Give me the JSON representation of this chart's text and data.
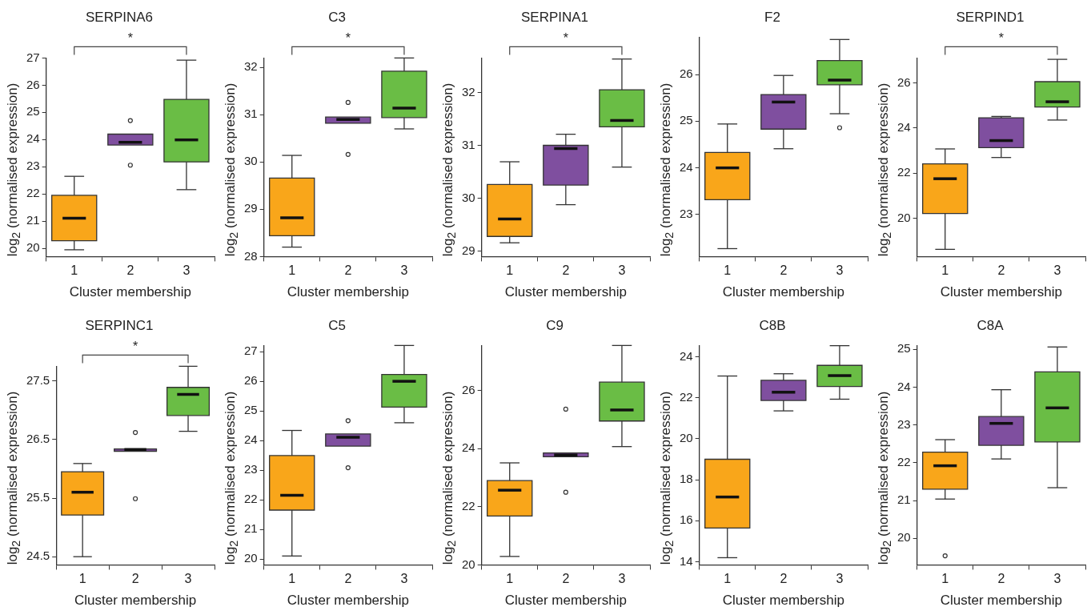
{
  "chart_data": [
    {
      "type": "box",
      "title": "SERPINA6",
      "xlabel": "Cluster membership",
      "ylabel": "log$_{2}$ (normalised expression)",
      "categories": [
        "1",
        "2",
        "3"
      ],
      "colors": [
        "#f9a61a",
        "#7f4f9f",
        "#6abd45"
      ],
      "ylim": [
        19.7,
        27
      ],
      "yticks": [
        20,
        21,
        22,
        23,
        24,
        25,
        26,
        27
      ],
      "annotations": [
        "*"
      ],
      "boxes": [
        {
          "low": 19.95,
          "q1": 20.28,
          "median": 21.11,
          "q3": 21.95,
          "high": 22.65
        },
        {
          "low": 23.8,
          "q1": 23.8,
          "median": 23.9,
          "q3": 24.2,
          "high": 24.2,
          "outliers": [
            24.7,
            23.06
          ]
        },
        {
          "low": 22.16,
          "q1": 23.18,
          "median": 23.99,
          "q3": 25.48,
          "high": 26.92
        }
      ]
    },
    {
      "type": "box",
      "title": "C3",
      "xlabel": "Cluster membership",
      "ylabel": "log$_{2}$ (normalised expression)",
      "categories": [
        "1",
        "2",
        "3"
      ],
      "colors": [
        "#f9a61a",
        "#7f4f9f",
        "#6abd45"
      ],
      "ylim": [
        28,
        32.2
      ],
      "yticks": [
        28,
        29,
        30,
        31,
        32
      ],
      "annotations": [
        "*"
      ],
      "boxes": [
        {
          "low": 28.2,
          "q1": 28.44,
          "median": 28.82,
          "q3": 29.66,
          "high": 30.14
        },
        {
          "low": 30.82,
          "q1": 30.82,
          "median": 30.9,
          "q3": 30.95,
          "high": 30.95,
          "outliers": [
            31.26,
            30.16
          ]
        },
        {
          "low": 30.7,
          "q1": 30.94,
          "median": 31.14,
          "q3": 31.92,
          "high": 32.2
        }
      ]
    },
    {
      "type": "box",
      "title": "SERPINA1",
      "xlabel": "Cluster membership",
      "ylabel": "log$_{2}$ (normalised expression)",
      "categories": [
        "1",
        "2",
        "3"
      ],
      "colors": [
        "#f9a61a",
        "#7f4f9f",
        "#6abd45"
      ],
      "ylim": [
        28.9,
        32.65
      ],
      "yticks": [
        29,
        30,
        31,
        32
      ],
      "annotations": [
        "*"
      ],
      "boxes": [
        {
          "low": 29.16,
          "q1": 29.28,
          "median": 29.61,
          "q3": 30.26,
          "high": 30.69
        },
        {
          "low": 29.88,
          "q1": 30.25,
          "median": 30.94,
          "q3": 31.0,
          "high": 31.21
        },
        {
          "low": 30.59,
          "q1": 31.35,
          "median": 31.47,
          "q3": 32.05,
          "high": 32.63
        }
      ]
    },
    {
      "type": "box",
      "title": "F2",
      "xlabel": "Cluster membership",
      "ylabel": "log$_{2}$ (normalised expression)",
      "categories": [
        "1",
        "2",
        "3"
      ],
      "colors": [
        "#f9a61a",
        "#7f4f9f",
        "#6abd45"
      ],
      "ylim": [
        22.1,
        26.8
      ],
      "yticks": [
        23,
        24,
        25,
        26
      ],
      "boxes": [
        {
          "low": 22.27,
          "q1": 23.32,
          "median": 24.0,
          "q3": 24.33,
          "high": 24.94
        },
        {
          "low": 24.41,
          "q1": 24.83,
          "median": 25.41,
          "q3": 25.57,
          "high": 25.98
        },
        {
          "low": 25.16,
          "q1": 25.78,
          "median": 25.88,
          "q3": 26.3,
          "high": 26.75,
          "outliers": [
            24.86
          ]
        }
      ]
    },
    {
      "type": "box",
      "title": "SERPIND1",
      "xlabel": "Cluster membership",
      "ylabel": "log$_{2}$ (normalised expression)",
      "categories": [
        "1",
        "2",
        "3"
      ],
      "colors": [
        "#f9a61a",
        "#7f4f9f",
        "#6abd45"
      ],
      "ylim": [
        18.3,
        27.1
      ],
      "yticks": [
        20,
        22,
        24,
        26
      ],
      "annotations": [
        "*"
      ],
      "boxes": [
        {
          "low": 18.62,
          "q1": 20.21,
          "median": 21.75,
          "q3": 22.41,
          "high": 23.07
        },
        {
          "low": 22.69,
          "q1": 23.13,
          "median": 23.44,
          "q3": 24.45,
          "high": 24.51
        },
        {
          "low": 24.35,
          "q1": 24.93,
          "median": 25.16,
          "q3": 26.05,
          "high": 27.04
        }
      ]
    },
    {
      "type": "box",
      "title": "SERPINC1",
      "xlabel": "Cluster membership",
      "ylabel": "log$_{2}$ (normalised expression)",
      "categories": [
        "1",
        "2",
        "3"
      ],
      "colors": [
        "#f9a61a",
        "#7f4f9f",
        "#6abd45"
      ],
      "ylim": [
        24.36,
        27.75
      ],
      "yticks": [
        24.5,
        25.5,
        26.5,
        27.5
      ],
      "annotations": [
        "*"
      ],
      "boxes": [
        {
          "low": 24.5,
          "q1": 25.21,
          "median": 25.6,
          "q3": 25.95,
          "high": 26.09
        },
        {
          "low": 26.3,
          "q1": 26.3,
          "median": 26.33,
          "q3": 26.34,
          "high": 26.34,
          "outliers": [
            26.62,
            25.49
          ]
        },
        {
          "low": 26.64,
          "q1": 26.91,
          "median": 27.27,
          "q3": 27.39,
          "high": 27.75
        }
      ]
    },
    {
      "type": "box",
      "title": "C5",
      "xlabel": "Cluster membership",
      "ylabel": "log$_{2}$ (normalised expression)",
      "categories": [
        "1",
        "2",
        "3"
      ],
      "colors": [
        "#f9a61a",
        "#7f4f9f",
        "#6abd45"
      ],
      "ylim": [
        19.8,
        27.21
      ],
      "yticks": [
        20,
        21,
        22,
        23,
        24,
        25,
        26,
        27
      ],
      "boxes": [
        {
          "low": 20.1,
          "q1": 21.65,
          "median": 22.15,
          "q3": 23.49,
          "high": 24.34
        },
        {
          "low": 23.81,
          "q1": 23.81,
          "median": 24.11,
          "q3": 24.22,
          "high": 24.22,
          "outliers": [
            24.67,
            23.08
          ]
        },
        {
          "low": 24.6,
          "q1": 25.13,
          "median": 26.0,
          "q3": 26.23,
          "high": 27.21
        }
      ]
    },
    {
      "type": "box",
      "title": "C9",
      "xlabel": "Cluster membership",
      "ylabel": "log$_{2}$ (normalised expression)",
      "categories": [
        "1",
        "2",
        "3"
      ],
      "colors": [
        "#f9a61a",
        "#7f4f9f",
        "#6abd45"
      ],
      "ylim": [
        20,
        27.55
      ],
      "yticks": [
        20,
        22,
        24,
        26
      ],
      "boxes": [
        {
          "low": 20.29,
          "q1": 21.68,
          "median": 22.57,
          "q3": 22.9,
          "high": 23.51
        },
        {
          "low": 23.72,
          "q1": 23.72,
          "median": 23.78,
          "q3": 23.85,
          "high": 23.85,
          "outliers": [
            25.36,
            22.5
          ]
        },
        {
          "low": 24.07,
          "q1": 24.95,
          "median": 25.33,
          "q3": 26.29,
          "high": 27.55
        }
      ]
    },
    {
      "type": "box",
      "title": "C8B",
      "xlabel": "Cluster membership",
      "ylabel": "log$_{2}$ (normalised expression)",
      "categories": [
        "1",
        "2",
        "3"
      ],
      "colors": [
        "#f9a61a",
        "#7f4f9f",
        "#6abd45"
      ],
      "ylim": [
        13.85,
        24.55
      ],
      "yticks": [
        14,
        16,
        18,
        20,
        22,
        24
      ],
      "boxes": [
        {
          "low": 14.2,
          "q1": 15.65,
          "median": 17.16,
          "q3": 19.0,
          "high": 23.06
        },
        {
          "low": 21.36,
          "q1": 21.87,
          "median": 22.27,
          "q3": 22.85,
          "high": 23.17
        },
        {
          "low": 21.93,
          "q1": 22.55,
          "median": 23.08,
          "q3": 23.58,
          "high": 24.54
        }
      ]
    },
    {
      "type": "box",
      "title": "C8A",
      "xlabel": "Cluster membership",
      "ylabel": "log$_{2}$ (normalised expression)",
      "categories": [
        "1",
        "2",
        "3"
      ],
      "colors": [
        "#f9a61a",
        "#7f4f9f",
        "#6abd45"
      ],
      "ylim": [
        19.3,
        25.1
      ],
      "yticks": [
        20,
        21,
        22,
        23,
        24,
        25
      ],
      "boxes": [
        {
          "low": 21.04,
          "q1": 21.3,
          "median": 21.92,
          "q3": 22.28,
          "high": 22.61,
          "outliers": [
            19.54
          ]
        },
        {
          "low": 22.1,
          "q1": 22.46,
          "median": 23.04,
          "q3": 23.22,
          "high": 23.93
        },
        {
          "low": 21.34,
          "q1": 22.55,
          "median": 23.45,
          "q3": 24.4,
          "high": 25.06
        }
      ]
    }
  ]
}
